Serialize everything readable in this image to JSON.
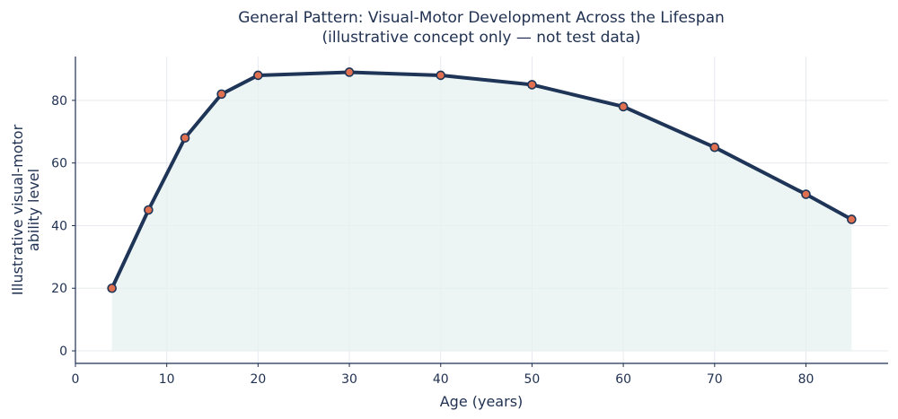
{
  "chart_data": {
    "type": "line",
    "title": "General Pattern: Visual-Motor Development Across the Lifespan",
    "subtitle": "(illustrative concept only — not test data)",
    "xlabel": "Age (years)",
    "ylabel_lines": [
      "Illustrative visual-motor",
      "ability level"
    ],
    "xlim": [
      0,
      89
    ],
    "ylim": [
      -4,
      94
    ],
    "xticks": [
      0,
      10,
      20,
      30,
      40,
      50,
      60,
      70,
      80
    ],
    "yticks": [
      0,
      20,
      40,
      60,
      80
    ],
    "grid": true,
    "series": [
      {
        "x": [
          4,
          8,
          12,
          16,
          20,
          30,
          40,
          50,
          60,
          70,
          80,
          85
        ],
        "y": [
          20,
          45,
          68,
          82,
          88,
          89,
          88,
          85,
          78,
          65,
          50,
          42
        ]
      }
    ],
    "colors": {
      "line": "#1f3557",
      "marker_fill": "#e07050",
      "marker_edge": "#1f3557",
      "area_fill": "#e6f2f0",
      "text": "#1f3050"
    }
  }
}
